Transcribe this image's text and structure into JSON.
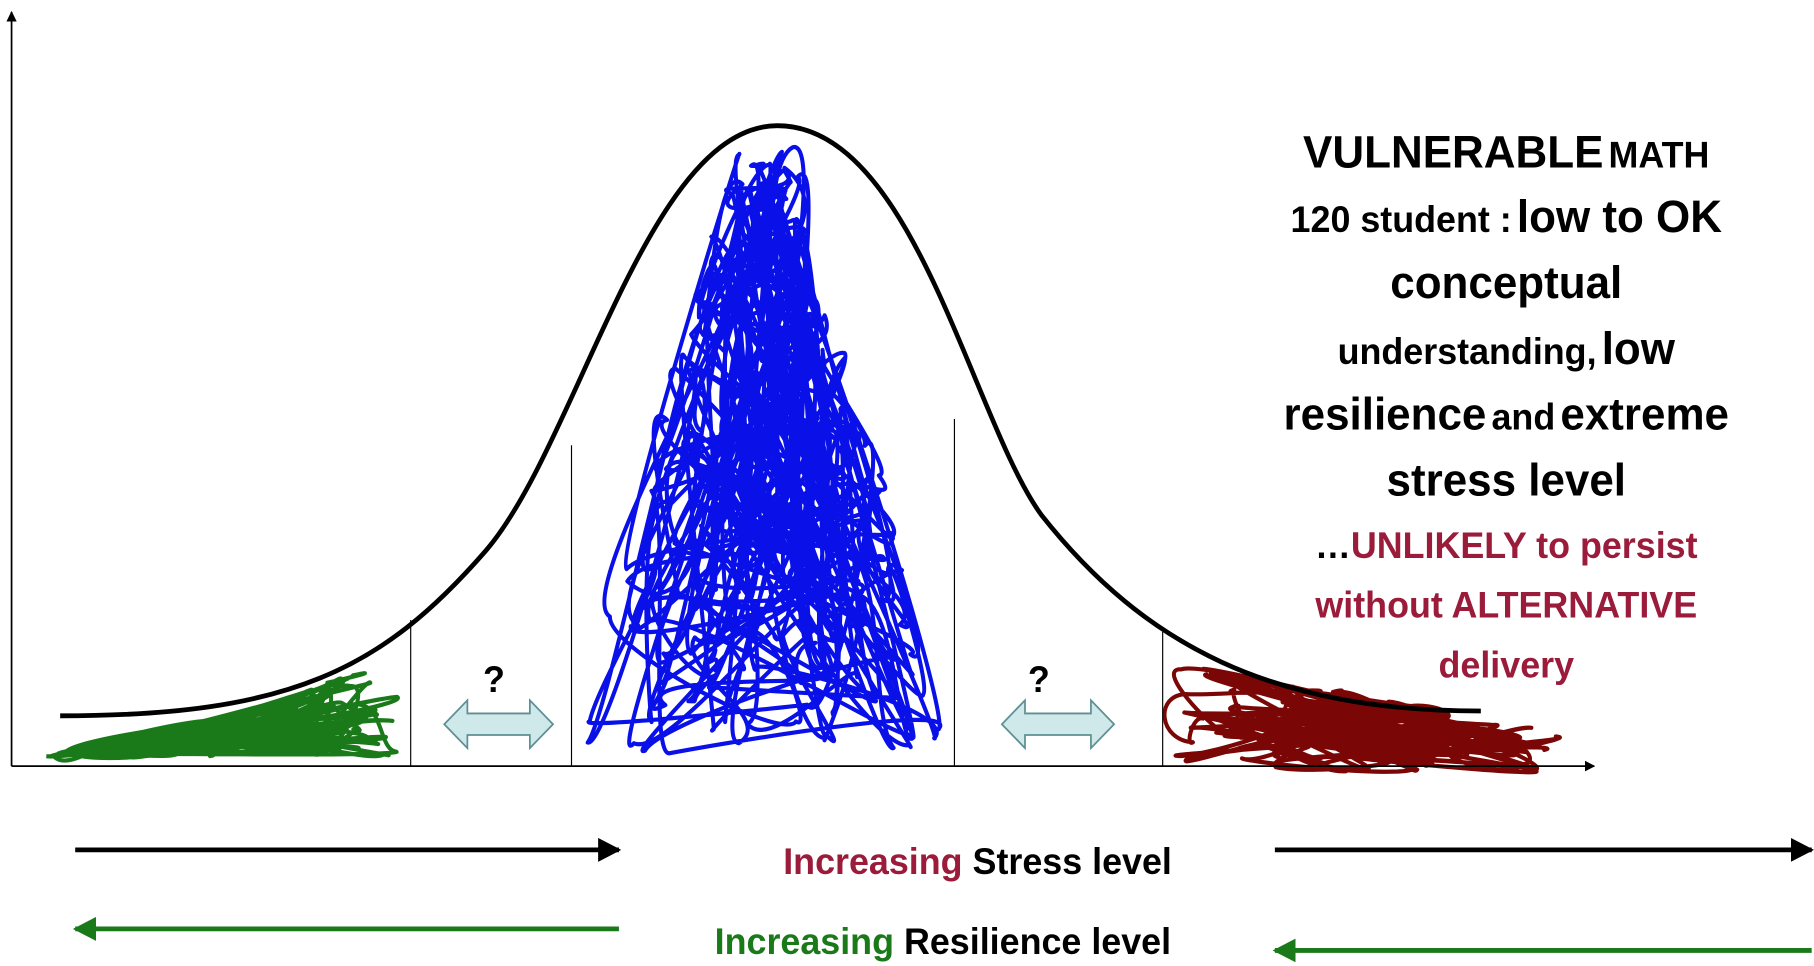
{
  "callout": {
    "line1": [
      "VULNERABLE",
      "MATH"
    ],
    "line2": [
      "120 student :",
      "low to OK"
    ],
    "line3": [
      "conceptual"
    ],
    "line4": [
      "understanding,",
      "low"
    ],
    "line5": [
      "resilience",
      "and",
      "extreme"
    ],
    "line6": [
      "stress level"
    ],
    "line7": [
      "…",
      "UNLIKELY to persist"
    ],
    "line8": [
      "without ALTERNATIVE"
    ],
    "line9": [
      "delivery"
    ]
  },
  "gaps": [
    "?",
    "?"
  ],
  "stress_axis": {
    "prefix": "Increasing",
    "label": "Stress level"
  },
  "resilience_axis": {
    "prefix": "Increasing",
    "label": "Resilience level"
  }
}
